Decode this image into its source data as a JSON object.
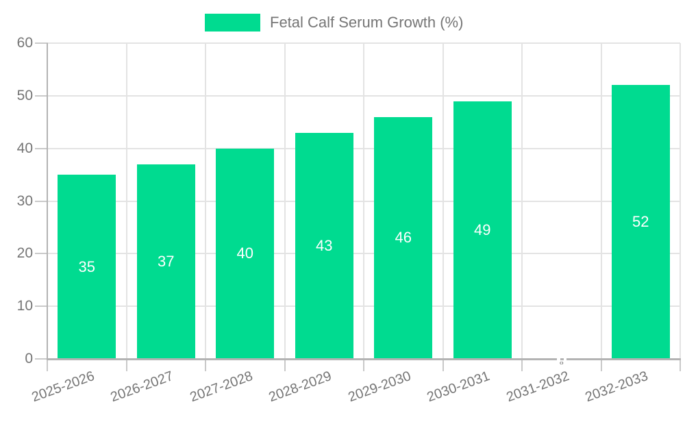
{
  "chart_data": {
    "type": "bar",
    "title": "Fetal Calf Serum Growth (%)",
    "categories": [
      "2025-2026",
      "2026-2027",
      "2027-2028",
      "2028-2029",
      "2029-2030",
      "2030-2031",
      "2031-2032",
      "2032-2033"
    ],
    "values": [
      35,
      37,
      40,
      43,
      46,
      49,
      0,
      52
    ],
    "series": [
      {
        "name": "Fetal Calf Serum Growth (%)",
        "values": [
          35,
          37,
          40,
          43,
          46,
          49,
          0,
          52
        ]
      }
    ],
    "xlabel": "",
    "ylabel": "",
    "ylim": [
      0,
      60
    ],
    "yticks": [
      0,
      10,
      20,
      30,
      40,
      50,
      60
    ],
    "grid": true,
    "legend_position": "top",
    "bar_color": "#00DB90",
    "value_label_color": "#ffffff"
  },
  "colors": {
    "background": "#ffffff",
    "accent_green": "#00DB90",
    "axis_text": "#757575",
    "axis_line": "#b3b3b3",
    "tick_line": "#c9c9c9",
    "gridline": "#e3e3e3",
    "zero_label": "#555555"
  }
}
